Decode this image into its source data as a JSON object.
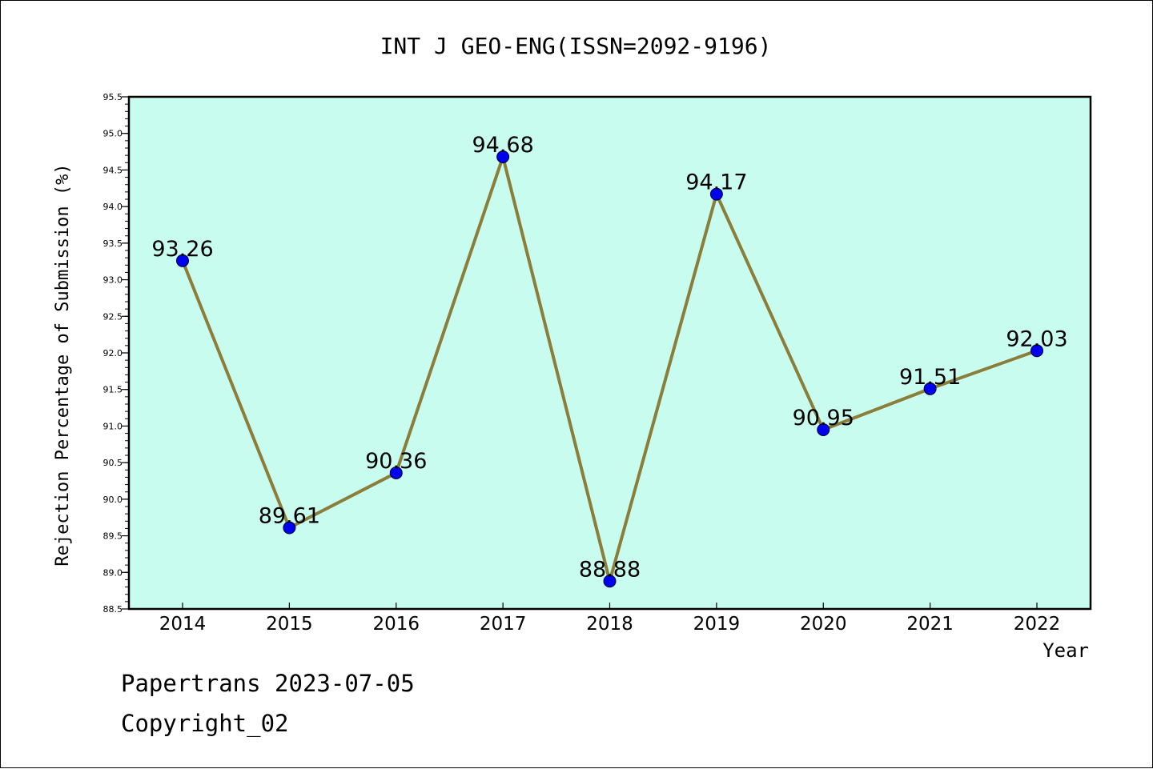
{
  "chart_data": {
    "type": "line",
    "title": "INT J GEO-ENG(ISSN=2092-9196)",
    "xlabel": "Year",
    "ylabel": "Rejection Percentage of Submission (%)",
    "categories": [
      "2014",
      "2015",
      "2016",
      "2017",
      "2018",
      "2019",
      "2020",
      "2021",
      "2022"
    ],
    "series": [
      {
        "values": [
          93.26,
          89.61,
          90.36,
          94.68,
          88.88,
          94.17,
          90.95,
          91.51,
          92.03
        ],
        "labels": [
          "93.26",
          "89.61",
          "90.36",
          "94.68",
          "88.88",
          "94.17",
          "90.95",
          "91.51",
          "92.03"
        ]
      }
    ],
    "ylim": [
      88.5,
      95.5
    ],
    "yticks": [
      "88.5",
      "89.0",
      "89.5",
      "90.0",
      "90.5",
      "91.0",
      "91.5",
      "92.0",
      "92.5",
      "93.0",
      "93.5",
      "94.0",
      "94.5",
      "95.0",
      "95.5"
    ],
    "colors": {
      "background": "#c8fcee",
      "line": "#8b7d3a",
      "marker": "#0000ee"
    },
    "grid": false,
    "legend": "none"
  },
  "footer": {
    "line1": "Papertrans 2023-07-05",
    "line2": "Copyright_02"
  }
}
